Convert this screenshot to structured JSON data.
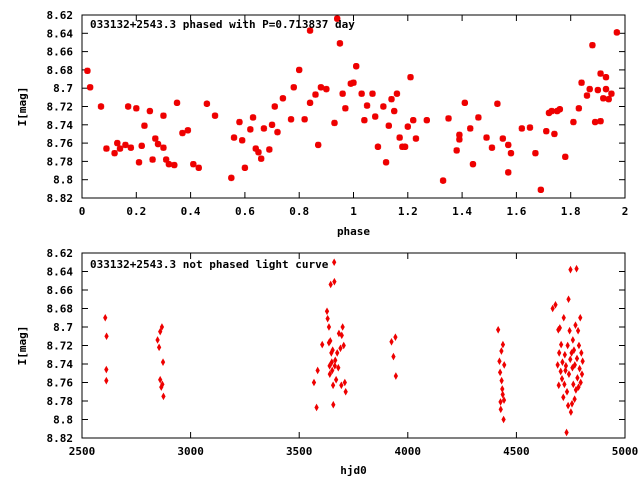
{
  "chart_data": [
    {
      "type": "scatter",
      "title": "033132+2543.3 phased with P=0.713837 day",
      "xlabel": "phase",
      "ylabel": "I[mag]",
      "xlim": [
        0,
        2
      ],
      "ylim": [
        8.62,
        8.82
      ],
      "y_inverted": true,
      "grid": false,
      "marker": "star",
      "color": "#ee0000",
      "x_ticks": [
        "0",
        "0.2",
        "0.4",
        "0.6",
        "0.8",
        "1",
        "1.2",
        "1.4",
        "1.6",
        "1.8",
        "2"
      ],
      "y_ticks": [
        "8.62",
        "8.64",
        "8.66",
        "8.68",
        "8.7",
        "8.72",
        "8.74",
        "8.76",
        "8.78",
        "8.8",
        "8.82"
      ],
      "series": [
        {
          "points": [
            [
              0.02,
              8.681
            ],
            [
              0.03,
              8.699
            ],
            [
              0.07,
              8.72
            ],
            [
              0.09,
              8.766
            ],
            [
              0.12,
              8.771
            ],
            [
              0.13,
              8.76
            ],
            [
              0.14,
              8.766
            ],
            [
              0.16,
              8.762
            ],
            [
              0.17,
              8.72
            ],
            [
              0.18,
              8.765
            ],
            [
              0.2,
              8.722
            ],
            [
              0.21,
              8.781
            ],
            [
              0.22,
              8.763
            ],
            [
              0.23,
              8.741
            ],
            [
              0.25,
              8.725
            ],
            [
              0.26,
              8.778
            ],
            [
              0.27,
              8.755
            ],
            [
              0.28,
              8.761
            ],
            [
              0.3,
              8.73
            ],
            [
              0.3,
              8.765
            ],
            [
              0.31,
              8.778
            ],
            [
              0.32,
              8.783
            ],
            [
              0.34,
              8.784
            ],
            [
              0.35,
              8.716
            ],
            [
              0.37,
              8.749
            ],
            [
              0.39,
              8.746
            ],
            [
              0.41,
              8.783
            ],
            [
              0.43,
              8.787
            ],
            [
              0.46,
              8.717
            ],
            [
              0.49,
              8.73
            ],
            [
              0.55,
              8.798
            ],
            [
              0.56,
              8.754
            ],
            [
              0.58,
              8.737
            ],
            [
              0.59,
              8.757
            ],
            [
              0.6,
              8.787
            ],
            [
              0.62,
              8.745
            ],
            [
              0.63,
              8.732
            ],
            [
              0.64,
              8.766
            ],
            [
              0.65,
              8.77
            ],
            [
              0.66,
              8.777
            ],
            [
              0.67,
              8.744
            ],
            [
              0.69,
              8.767
            ],
            [
              0.7,
              8.74
            ],
            [
              0.71,
              8.72
            ],
            [
              0.72,
              8.748
            ],
            [
              0.74,
              8.711
            ],
            [
              0.77,
              8.734
            ],
            [
              0.78,
              8.699
            ],
            [
              0.8,
              8.68
            ],
            [
              0.82,
              8.734
            ],
            [
              0.84,
              8.716
            ],
            [
              0.84,
              8.637
            ],
            [
              0.86,
              8.707
            ],
            [
              0.87,
              8.762
            ],
            [
              0.88,
              8.699
            ],
            [
              0.9,
              8.701
            ],
            [
              0.93,
              8.738
            ],
            [
              0.94,
              8.624
            ],
            [
              0.95,
              8.651
            ],
            [
              0.96,
              8.706
            ],
            [
              0.97,
              8.722
            ],
            [
              0.99,
              8.695
            ],
            [
              1.0,
              8.694
            ],
            [
              1.01,
              8.676
            ],
            [
              1.03,
              8.706
            ],
            [
              1.04,
              8.735
            ],
            [
              1.05,
              8.719
            ],
            [
              1.07,
              8.706
            ],
            [
              1.08,
              8.731
            ],
            [
              1.09,
              8.764
            ],
            [
              1.11,
              8.72
            ],
            [
              1.12,
              8.781
            ],
            [
              1.13,
              8.741
            ],
            [
              1.14,
              8.712
            ],
            [
              1.15,
              8.725
            ],
            [
              1.16,
              8.706
            ],
            [
              1.17,
              8.754
            ],
            [
              1.18,
              8.764
            ],
            [
              1.19,
              8.764
            ],
            [
              1.2,
              8.742
            ],
            [
              1.21,
              8.688
            ],
            [
              1.22,
              8.735
            ],
            [
              1.23,
              8.755
            ],
            [
              1.27,
              8.735
            ],
            [
              1.33,
              8.801
            ],
            [
              1.35,
              8.733
            ],
            [
              1.38,
              8.768
            ],
            [
              1.39,
              8.756
            ],
            [
              1.39,
              8.751
            ],
            [
              1.41,
              8.716
            ],
            [
              1.43,
              8.744
            ],
            [
              1.44,
              8.783
            ],
            [
              1.46,
              8.732
            ],
            [
              1.49,
              8.754
            ],
            [
              1.51,
              8.765
            ],
            [
              1.53,
              8.717
            ],
            [
              1.55,
              8.755
            ],
            [
              1.57,
              8.792
            ],
            [
              1.57,
              8.762
            ],
            [
              1.58,
              8.771
            ],
            [
              1.62,
              8.744
            ],
            [
              1.65,
              8.743
            ],
            [
              1.67,
              8.771
            ],
            [
              1.69,
              8.811
            ],
            [
              1.71,
              8.747
            ],
            [
              1.72,
              8.727
            ],
            [
              1.73,
              8.725
            ],
            [
              1.74,
              8.75
            ],
            [
              1.75,
              8.725
            ],
            [
              1.76,
              8.723
            ],
            [
              1.78,
              8.775
            ],
            [
              1.81,
              8.737
            ],
            [
              1.83,
              8.722
            ],
            [
              1.84,
              8.694
            ],
            [
              1.86,
              8.708
            ],
            [
              1.87,
              8.701
            ],
            [
              1.88,
              8.653
            ],
            [
              1.89,
              8.737
            ],
            [
              1.9,
              8.702
            ],
            [
              1.91,
              8.684
            ],
            [
              1.91,
              8.736
            ],
            [
              1.92,
              8.711
            ],
            [
              1.93,
              8.688
            ],
            [
              1.93,
              8.701
            ],
            [
              1.94,
              8.712
            ],
            [
              1.95,
              8.706
            ],
            [
              1.97,
              8.639
            ]
          ]
        }
      ]
    },
    {
      "type": "scatter",
      "title": "033132+2543.3 not phased light curve",
      "xlabel": "hjd0",
      "ylabel": "I[mag]",
      "xlim": [
        2500,
        5000
      ],
      "ylim": [
        8.62,
        8.82
      ],
      "y_inverted": true,
      "grid": false,
      "marker": "diamond",
      "color": "#ee0000",
      "x_ticks": [
        "2500",
        "3000",
        "3500",
        "4000",
        "4500",
        "5000"
      ],
      "y_ticks": [
        "8.62",
        "8.64",
        "8.66",
        "8.68",
        "8.7",
        "8.72",
        "8.74",
        "8.76",
        "8.78",
        "8.8",
        "8.82"
      ],
      "series": [
        {
          "points": [
            [
              2607,
              8.69
            ],
            [
              2613,
              8.71
            ],
            [
              2612,
              8.746
            ],
            [
              2612,
              8.758
            ],
            [
              2848,
              8.714
            ],
            [
              2855,
              8.722
            ],
            [
              2860,
              8.705
            ],
            [
              2868,
              8.7
            ],
            [
              2860,
              8.757
            ],
            [
              2870,
              8.762
            ],
            [
              2873,
              8.738
            ],
            [
              2865,
              8.765
            ],
            [
              2875,
              8.775
            ],
            [
              3568,
              8.76
            ],
            [
              3580,
              8.787
            ],
            [
              3585,
              8.747
            ],
            [
              3606,
              8.719
            ],
            [
              3628,
              8.683
            ],
            [
              3631,
              8.691
            ],
            [
              3637,
              8.7
            ],
            [
              3637,
              8.717
            ],
            [
              3640,
              8.742
            ],
            [
              3641,
              8.751
            ],
            [
              3643,
              8.715
            ],
            [
              3645,
              8.654
            ],
            [
              3648,
              8.728
            ],
            [
              3650,
              8.738
            ],
            [
              3652,
              8.747
            ],
            [
              3654,
              8.725
            ],
            [
              3656,
              8.763
            ],
            [
              3657,
              8.784
            ],
            [
              3661,
              8.63
            ],
            [
              3662,
              8.651
            ],
            [
              3664,
              8.742
            ],
            [
              3666,
              8.736
            ],
            [
              3670,
              8.757
            ],
            [
              3675,
              8.728
            ],
            [
              3680,
              8.744
            ],
            [
              3683,
              8.707
            ],
            [
              3690,
              8.723
            ],
            [
              3694,
              8.763
            ],
            [
              3696,
              8.709
            ],
            [
              3700,
              8.7
            ],
            [
              3705,
              8.72
            ],
            [
              3710,
              8.76
            ],
            [
              3714,
              8.77
            ],
            [
              3925,
              8.716
            ],
            [
              3934,
              8.732
            ],
            [
              3943,
              8.711
            ],
            [
              3945,
              8.753
            ],
            [
              4416,
              8.703
            ],
            [
              4422,
              8.737
            ],
            [
              4425,
              8.749
            ],
            [
              4427,
              8.781
            ],
            [
              4428,
              8.789
            ],
            [
              4431,
              8.726
            ],
            [
              4432,
              8.758
            ],
            [
              4435,
              8.767
            ],
            [
              4437,
              8.773
            ],
            [
              4438,
              8.719
            ],
            [
              4441,
              8.8
            ],
            [
              4443,
              8.779
            ],
            [
              4444,
              8.741
            ],
            [
              4667,
              8.68
            ],
            [
              4680,
              8.676
            ],
            [
              4690,
              8.741
            ],
            [
              4693,
              8.703
            ],
            [
              4695,
              8.763
            ],
            [
              4697,
              8.728
            ],
            [
              4700,
              8.701
            ],
            [
              4704,
              8.748
            ],
            [
              4706,
              8.719
            ],
            [
              4710,
              8.756
            ],
            [
              4712,
              8.738
            ],
            [
              4716,
              8.776
            ],
            [
              4718,
              8.69
            ],
            [
              4721,
              8.762
            ],
            [
              4723,
              8.73
            ],
            [
              4726,
              8.747
            ],
            [
              4728,
              8.742
            ],
            [
              4731,
              8.814
            ],
            [
              4733,
              8.77
            ],
            [
              4736,
              8.72
            ],
            [
              4738,
              8.785
            ],
            [
              4740,
              8.67
            ],
            [
              4742,
              8.751
            ],
            [
              4745,
              8.704
            ],
            [
              4748,
              8.735
            ],
            [
              4749,
              8.638
            ],
            [
              4751,
              8.792
            ],
            [
              4754,
              8.728
            ],
            [
              4756,
              8.783
            ],
            [
              4758,
              8.744
            ],
            [
              4760,
              8.714
            ],
            [
              4762,
              8.762
            ],
            [
              4765,
              8.725
            ],
            [
              4768,
              8.778
            ],
            [
              4769,
              8.741
            ],
            [
              4772,
              8.698
            ],
            [
              4774,
              8.768
            ],
            [
              4777,
              8.637
            ],
            [
              4779,
              8.734
            ],
            [
              4781,
              8.755
            ],
            [
              4784,
              8.704
            ],
            [
              4786,
              8.765
            ],
            [
              4788,
              8.72
            ],
            [
              4791,
              8.745
            ],
            [
              4794,
              8.69
            ],
            [
              4796,
              8.76
            ],
            [
              4799,
              8.728
            ],
            [
              4802,
              8.751
            ],
            [
              4805,
              8.737
            ]
          ]
        }
      ]
    }
  ]
}
